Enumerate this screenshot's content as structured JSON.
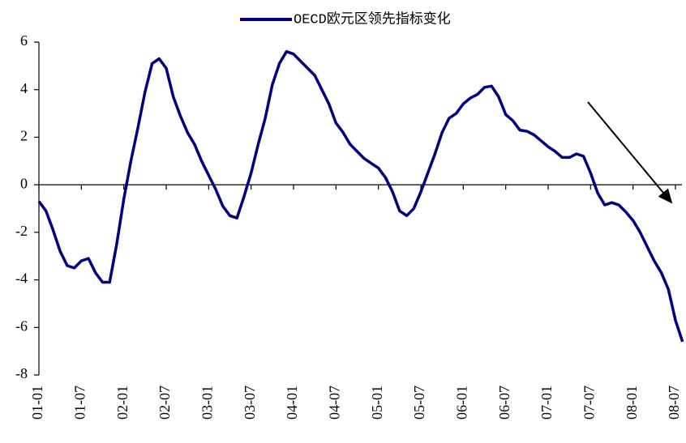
{
  "chart_data": {
    "type": "line",
    "legend": "OECD欧元区领先指标变化",
    "color": "#000080",
    "categories": [
      "01-01",
      null,
      null,
      null,
      null,
      null,
      "01-07",
      null,
      null,
      null,
      null,
      null,
      "02-01",
      null,
      null,
      null,
      null,
      null,
      "02-07",
      null,
      null,
      null,
      null,
      null,
      "03-01",
      null,
      null,
      null,
      null,
      null,
      "03-07",
      null,
      null,
      null,
      null,
      null,
      "04-01",
      null,
      null,
      null,
      null,
      null,
      "04-07",
      null,
      null,
      null,
      null,
      null,
      "05-01",
      null,
      null,
      null,
      null,
      null,
      "05-07",
      null,
      null,
      null,
      null,
      null,
      "06-01",
      null,
      null,
      null,
      null,
      null,
      "06-07",
      null,
      null,
      null,
      null,
      null,
      "07-01",
      null,
      null,
      null,
      null,
      null,
      "07-07",
      null,
      null,
      null,
      null,
      null,
      "08-01",
      null,
      null,
      null,
      null,
      null,
      "08-07",
      null
    ],
    "values": [
      -0.7,
      -1.1,
      -1.9,
      -2.8,
      -3.4,
      -3.5,
      -3.2,
      -3.1,
      -3.7,
      -4.1,
      -4.1,
      -2.5,
      -0.6,
      1.0,
      2.4,
      3.9,
      5.1,
      5.3,
      4.9,
      3.7,
      2.9,
      2.2,
      1.7,
      1.0,
      0.4,
      -0.2,
      -0.9,
      -1.3,
      -1.4,
      -0.5,
      0.5,
      1.7,
      2.8,
      4.2,
      5.1,
      5.6,
      5.5,
      5.2,
      4.9,
      4.6,
      4.0,
      3.4,
      2.6,
      2.2,
      1.7,
      1.4,
      1.1,
      0.9,
      0.7,
      0.3,
      -0.3,
      -1.1,
      -1.3,
      -1.0,
      -0.3,
      0.5,
      1.3,
      2.2,
      2.8,
      3.0,
      3.4,
      3.65,
      3.8,
      4.1,
      4.15,
      3.7,
      2.95,
      2.7,
      2.3,
      2.25,
      2.1,
      1.85,
      1.6,
      1.4,
      1.15,
      1.15,
      1.3,
      1.2,
      0.5,
      -0.35,
      -0.85,
      -0.75,
      -0.85,
      -1.15,
      -1.5,
      -2.0,
      -2.6,
      -3.2,
      -3.7,
      -4.4,
      -5.7,
      -6.6
    ],
    "ylim": [
      -8,
      6
    ],
    "yticks": [
      -8,
      -6,
      -4,
      -2,
      0,
      2,
      4,
      6
    ]
  }
}
